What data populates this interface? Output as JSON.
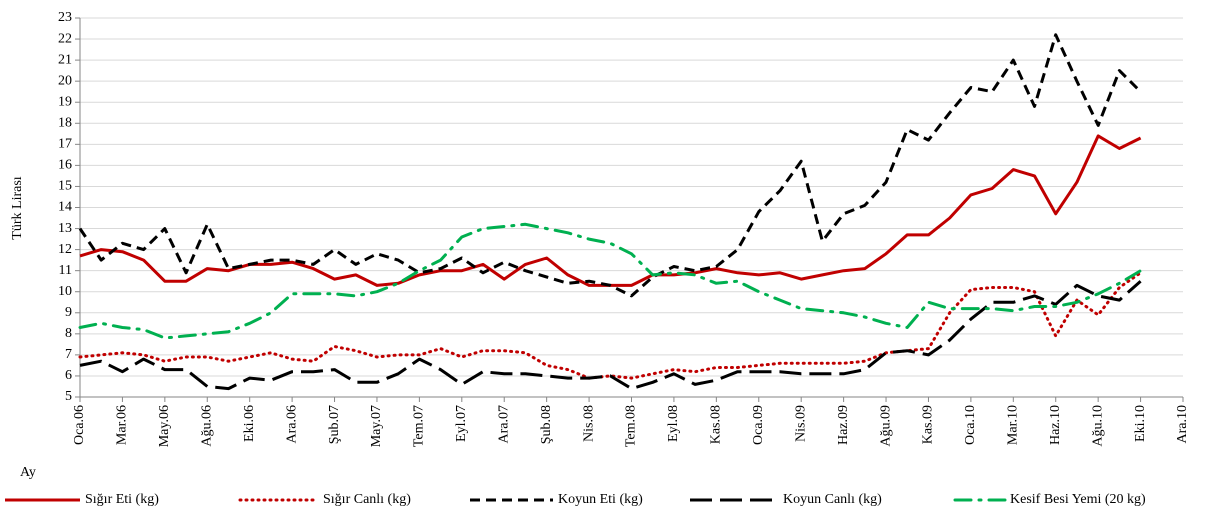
{
  "chart_data": {
    "type": "line",
    "xlabel": "Ay",
    "ylabel": "Türk Lirası",
    "categories": [
      "Oca.06",
      null,
      "Mar.06",
      null,
      "May.06",
      null,
      "Ağu.06",
      null,
      "Eki.06",
      null,
      "Ara.06",
      null,
      "Şub.07",
      null,
      "May.07",
      null,
      "Tem.07",
      null,
      "Eyl.07",
      null,
      "Ara.07",
      null,
      "Şub.08",
      null,
      "Nis.08",
      null,
      "Tem.08",
      null,
      "Eyl.08",
      null,
      "Kas.08",
      null,
      "Oca.09",
      null,
      "Nis.09",
      null,
      "Haz.09",
      null,
      "Ağu.09",
      null,
      "Kas.09",
      null,
      "Oca.10",
      null,
      "Mar.10",
      null,
      "Haz.10",
      null,
      "Ağu.10",
      null,
      "Eki.10",
      null,
      "Ara.10"
    ],
    "ylim": [
      5,
      23
    ],
    "yticks": [
      5,
      6,
      7,
      8,
      9,
      10,
      11,
      12,
      13,
      14,
      15,
      16,
      17,
      18,
      19,
      20,
      21,
      22,
      23
    ],
    "grid": true,
    "legend": "bottom",
    "series": [
      {
        "name": "Sığır Eti (kg)",
        "color": "#c00000",
        "style": "solid",
        "values": [
          11.7,
          12.0,
          11.9,
          11.5,
          10.5,
          10.5,
          11.1,
          11.0,
          11.3,
          11.3,
          11.4,
          11.1,
          10.6,
          10.8,
          10.3,
          10.4,
          10.8,
          11.0,
          11.0,
          11.3,
          10.6,
          11.3,
          11.6,
          10.8,
          10.3,
          10.3,
          10.3,
          10.8,
          10.8,
          10.9,
          11.1,
          10.9,
          10.8,
          10.9,
          10.6,
          10.8,
          11.0,
          11.1,
          11.8,
          12.7,
          12.7,
          13.5,
          14.6,
          14.9,
          15.8,
          15.5,
          13.7,
          15.2,
          17.4,
          16.8,
          17.3,
          null,
          null
        ]
      },
      {
        "name": "Sığır Canlı (kg)",
        "color": "#c00000",
        "style": "dotted",
        "values": [
          6.9,
          7.0,
          7.1,
          7.0,
          6.7,
          6.9,
          6.9,
          6.7,
          6.9,
          7.1,
          6.8,
          6.7,
          7.4,
          7.2,
          6.9,
          7.0,
          7.0,
          7.3,
          6.9,
          7.2,
          7.2,
          7.1,
          6.5,
          6.3,
          5.9,
          6.0,
          5.9,
          6.1,
          6.3,
          6.2,
          6.4,
          6.4,
          6.5,
          6.6,
          6.6,
          6.6,
          6.6,
          6.7,
          7.1,
          7.2,
          7.3,
          9.0,
          10.1,
          10.2,
          10.2,
          10.0,
          7.9,
          9.6,
          8.9,
          10.2,
          10.9,
          null,
          null
        ]
      },
      {
        "name": "Koyun Eti (kg)",
        "color": "#000000",
        "style": "dashed",
        "values": [
          13.0,
          11.5,
          12.3,
          12.0,
          13.0,
          10.9,
          13.2,
          11.1,
          11.3,
          11.5,
          11.5,
          11.3,
          12.0,
          11.3,
          11.8,
          11.5,
          10.9,
          11.1,
          11.6,
          10.9,
          11.4,
          11.0,
          10.7,
          10.4,
          10.5,
          10.3,
          9.8,
          10.7,
          11.2,
          11.0,
          11.2,
          12.0,
          13.8,
          14.8,
          16.2,
          12.4,
          13.7,
          14.1,
          15.2,
          17.7,
          17.2,
          18.5,
          19.7,
          19.5,
          21.0,
          18.8,
          22.2,
          20.0,
          17.9,
          20.5,
          19.5,
          null,
          null
        ]
      },
      {
        "name": "Koyun Canlı (kg)",
        "color": "#000000",
        "style": "longdash",
        "values": [
          6.5,
          6.7,
          6.2,
          6.8,
          6.3,
          6.3,
          5.5,
          5.4,
          5.9,
          5.8,
          6.2,
          6.2,
          6.3,
          5.7,
          5.7,
          6.1,
          6.8,
          6.3,
          5.6,
          6.2,
          6.1,
          6.1,
          6.0,
          5.9,
          5.9,
          6.0,
          5.4,
          5.7,
          6.1,
          5.6,
          5.8,
          6.2,
          6.2,
          6.2,
          6.1,
          6.1,
          6.1,
          6.3,
          7.1,
          7.2,
          7.0,
          7.7,
          8.7,
          9.5,
          9.5,
          9.8,
          9.4,
          10.3,
          9.8,
          9.6,
          10.5,
          null,
          null
        ]
      },
      {
        "name": "Kesif Besi Yemi (20 kg)",
        "color": "#00b050",
        "style": "dashdot",
        "values": [
          8.3,
          8.5,
          8.3,
          8.2,
          7.8,
          7.9,
          8.0,
          8.1,
          8.5,
          9.0,
          9.9,
          9.9,
          9.9,
          9.8,
          10.0,
          10.4,
          11.0,
          11.5,
          12.6,
          13.0,
          13.1,
          13.2,
          13.0,
          12.8,
          12.5,
          12.3,
          11.8,
          10.8,
          10.9,
          10.8,
          10.4,
          10.5,
          10.0,
          9.6,
          9.2,
          9.1,
          9.0,
          8.8,
          8.5,
          8.3,
          9.5,
          9.2,
          9.2,
          9.2,
          9.1,
          9.3,
          9.3,
          9.5,
          9.9,
          10.4,
          11.0,
          null,
          null
        ]
      }
    ]
  }
}
